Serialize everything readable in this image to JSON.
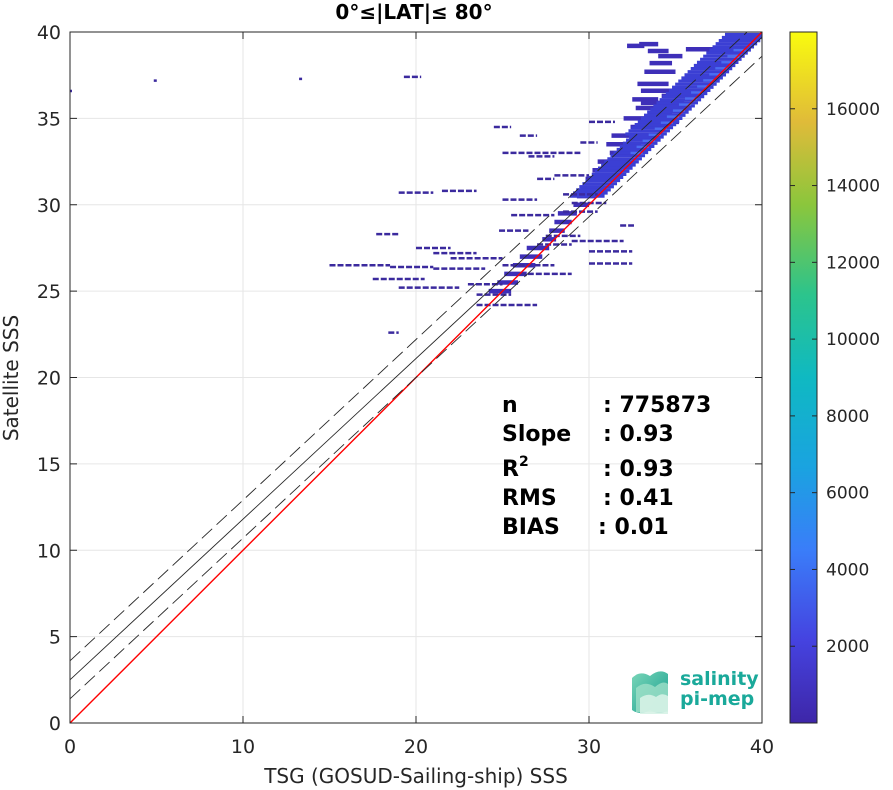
{
  "chart_data": {
    "type": "scatter",
    "title": "0°≤|LAT|≤ 80°",
    "xlabel": "TSG (GOSUD-Sailing-ship) SSS",
    "ylabel": "Satellite SSS",
    "xlim": [
      0,
      40
    ],
    "ylim": [
      0,
      40
    ],
    "xticks": [
      "0",
      "10",
      "20",
      "30",
      "40"
    ],
    "yticks": [
      "0",
      "5",
      "10",
      "15",
      "20",
      "25",
      "30",
      "35",
      "40"
    ],
    "grid": true,
    "lines": [
      {
        "name": "1:1",
        "color": "#ff0000",
        "style": "solid",
        "x": [
          0,
          40
        ],
        "y": [
          0,
          40
        ]
      },
      {
        "name": "fit",
        "color": "#262626",
        "style": "solid",
        "x": [
          0,
          40
        ],
        "y": [
          2.5,
          39.7
        ]
      },
      {
        "name": "fit+",
        "color": "#262626",
        "style": "dashed",
        "x": [
          0,
          40
        ],
        "y": [
          3.6,
          40.8
        ]
      },
      {
        "name": "fit-",
        "color": "#262626",
        "style": "dashed",
        "x": [
          0,
          40
        ],
        "y": [
          1.4,
          38.6
        ]
      }
    ],
    "density_segments": [
      [
        32.2,
        33.2,
        39.2
      ],
      [
        32.9,
        34.0,
        39.3
      ],
      [
        33.4,
        34.6,
        38.9
      ],
      [
        33.5,
        34.8,
        38.2
      ],
      [
        34.0,
        35.4,
        38.6
      ],
      [
        33.2,
        35.0,
        37.7
      ],
      [
        32.8,
        34.6,
        37.0
      ],
      [
        33.0,
        35.6,
        36.6
      ],
      [
        32.5,
        34.0,
        36.1
      ],
      [
        32.7,
        35.0,
        35.6
      ],
      [
        32.0,
        34.2,
        35.0
      ],
      [
        32.4,
        34.5,
        34.5
      ],
      [
        31.3,
        33.3,
        34.0
      ],
      [
        31.0,
        33.0,
        33.5
      ],
      [
        31.2,
        32.6,
        33.0
      ],
      [
        30.5,
        32.3,
        32.5
      ],
      [
        30.2,
        31.9,
        32.0
      ],
      [
        29.8,
        31.4,
        31.5
      ],
      [
        29.5,
        30.9,
        31.0
      ],
      [
        29.3,
        30.4,
        30.5
      ],
      [
        29.1,
        30.0,
        30.0
      ],
      [
        28.2,
        29.3,
        29.5
      ],
      [
        28.0,
        29.0,
        29.0
      ],
      [
        27.7,
        28.6,
        28.5
      ],
      [
        27.3,
        28.1,
        28.0
      ],
      [
        26.4,
        27.7,
        27.5
      ],
      [
        26.0,
        27.3,
        27.0
      ],
      [
        25.6,
        26.9,
        26.5
      ],
      [
        25.1,
        26.4,
        26.0
      ],
      [
        24.7,
        25.9,
        25.5
      ],
      [
        24.2,
        25.5,
        25.0
      ],
      [
        33.4,
        34.8,
        35.2
      ],
      [
        33.6,
        35.2,
        34.8
      ],
      [
        34.2,
        35.8,
        36.3
      ],
      [
        35.6,
        38.0,
        39.0
      ],
      [
        33.0,
        35.5,
        35.9
      ]
    ],
    "outlier_segments": [
      [
        19.3,
        20.3,
        37.4
      ],
      [
        25.0,
        29.5,
        33.0
      ],
      [
        29.5,
        30.5,
        33.6
      ],
      [
        24.5,
        25.5,
        34.5
      ],
      [
        26.0,
        27.0,
        34.0
      ],
      [
        30.0,
        31.5,
        34.8
      ],
      [
        27.0,
        28.0,
        31.5
      ],
      [
        28.0,
        30.0,
        31.7
      ],
      [
        19.0,
        21.0,
        30.7
      ],
      [
        21.5,
        23.5,
        30.8
      ],
      [
        28.5,
        30.5,
        30.6
      ],
      [
        25.0,
        27.0,
        30.3
      ],
      [
        29.0,
        31.0,
        30.1
      ],
      [
        25.5,
        28.0,
        29.4
      ],
      [
        28.5,
        30.5,
        29.6
      ],
      [
        24.8,
        26.5,
        28.5
      ],
      [
        27.5,
        29.5,
        28.2
      ],
      [
        29.0,
        32.0,
        27.9
      ],
      [
        30.0,
        32.5,
        27.3
      ],
      [
        17.7,
        19.0,
        28.3
      ],
      [
        20.0,
        22.0,
        27.5
      ],
      [
        21.0,
        23.5,
        27.2
      ],
      [
        22.0,
        25.0,
        26.9
      ],
      [
        25.0,
        28.0,
        26.5
      ],
      [
        15.0,
        18.5,
        26.5
      ],
      [
        18.5,
        21.0,
        26.4
      ],
      [
        21.0,
        24.0,
        26.3
      ],
      [
        26.0,
        29.0,
        26.0
      ],
      [
        17.5,
        20.5,
        25.7
      ],
      [
        23.0,
        25.0,
        25.4
      ],
      [
        19.0,
        22.5,
        25.2
      ],
      [
        23.5,
        25.5,
        24.8
      ],
      [
        23.5,
        27.0,
        24.2
      ],
      [
        18.4,
        19.0,
        22.6
      ],
      [
        30.0,
        32.5,
        26.6
      ],
      [
        27.0,
        29.0,
        27.7
      ],
      [
        31.8,
        32.6,
        28.8
      ],
      [
        26.5,
        28.0,
        32.8
      ]
    ],
    "isolated_points": [
      [
        0.0,
        36.6
      ],
      [
        4.9,
        37.2
      ],
      [
        13.3,
        37.3
      ]
    ],
    "stats": {
      "n_label": "n",
      "n_value": ": 775873",
      "slope_label": "Slope",
      "slope_value": ": 0.93",
      "r2_label_base": "R",
      "r2_label_sup": "2",
      "r2_value": ": 0.93",
      "rms_label": "RMS",
      "rms_value": ": 0.41",
      "bias_label": "BIAS",
      "bias_value": ": 0.01"
    },
    "colorbar": {
      "colormap": "parula",
      "min": 0,
      "max": 18000,
      "ticks": [
        "2000",
        "4000",
        "6000",
        "8000",
        "10000",
        "12000",
        "14000",
        "16000"
      ],
      "tick_values": [
        2000,
        4000,
        6000,
        8000,
        10000,
        12000,
        14000,
        16000
      ]
    }
  },
  "logo": {
    "line1": "salinity",
    "line2": "pi-mep",
    "color": "#1aa99a"
  }
}
